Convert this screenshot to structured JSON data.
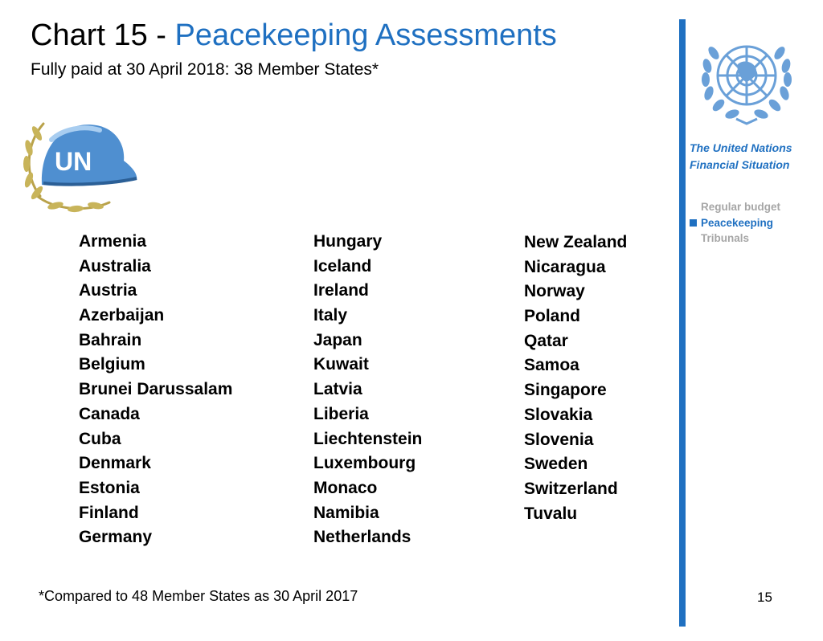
{
  "header": {
    "title_prefix": "Chart 15 - ",
    "title_accent": "Peacekeeping Assessments",
    "subtitle": "Fully paid at 30 April 2018: 38 Member States*"
  },
  "helmet_image": {
    "text": "UN",
    "icon": "un-helmet-icon"
  },
  "countries": {
    "column1": [
      "Armenia",
      "Australia",
      "Austria",
      "Azerbaijan",
      "Bahrain",
      "Belgium",
      "Brunei Darussalam",
      "Canada",
      "Cuba",
      "Denmark",
      "Estonia",
      "Finland",
      "Germany"
    ],
    "column2": [
      "Hungary",
      "Iceland",
      "Ireland",
      "Italy",
      "Japan",
      "Kuwait",
      "Latvia",
      "Liberia",
      "Liechtenstein",
      "Luxembourg",
      "Monaco",
      "Namibia",
      "Netherlands"
    ],
    "column3": [
      "New Zealand",
      "Nicaragua",
      "Norway",
      "Poland",
      "Qatar",
      "Samoa",
      "Singapore",
      "Slovakia",
      "Slovenia",
      "Sweden",
      "Switzerland",
      "Tuvalu"
    ]
  },
  "footnote": "*Compared to 48 Member States as 30 April 2017",
  "sidebar": {
    "title_line1": "The United Nations",
    "title_line2": "Financial Situation",
    "nav": [
      {
        "label": "Regular budget",
        "active": false
      },
      {
        "label": "Peacekeeping",
        "active": true
      },
      {
        "label": "Tribunals",
        "active": false
      }
    ]
  },
  "page_number": "15",
  "colors": {
    "accent": "#1f70c1",
    "inactive": "#a6a6a6",
    "text": "#000000"
  }
}
